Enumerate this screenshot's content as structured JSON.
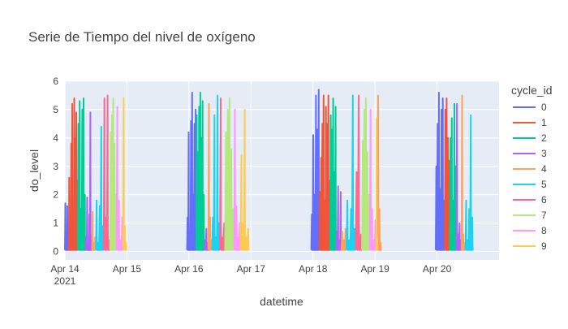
{
  "chart_data": {
    "type": "line",
    "title": "Serie de Tiempo del nivel de oxígeno",
    "xlabel": "datetime",
    "ylabel": "do_level",
    "x_range": [
      "2021-04-14",
      "2021-04-21"
    ],
    "ylim": [
      -0.3,
      6
    ],
    "yticks": [
      0,
      1,
      2,
      3,
      4,
      5,
      6
    ],
    "xticks": [
      {
        "date": "2021-04-14",
        "label": "Apr 14",
        "sublabel": "2021"
      },
      {
        "date": "2021-04-15",
        "label": "Apr 15",
        "sublabel": ""
      },
      {
        "date": "2021-04-16",
        "label": "Apr 16",
        "sublabel": ""
      },
      {
        "date": "2021-04-17",
        "label": "Apr 17",
        "sublabel": ""
      },
      {
        "date": "2021-04-18",
        "label": "Apr 18",
        "sublabel": ""
      },
      {
        "date": "2021-04-19",
        "label": "Apr 19",
        "sublabel": ""
      },
      {
        "date": "2021-04-20",
        "label": "Apr 20",
        "sublabel": ""
      }
    ],
    "grid": true,
    "legend": {
      "title": "cycle_id",
      "placement": "right"
    },
    "series": [
      {
        "name": "0",
        "color": "#636efa",
        "segments": [
          {
            "start": "2021-04-14T00:00",
            "end": "2021-04-14T01:30",
            "peaks": [
              1.7,
              0.6,
              1.6,
              0.4
            ]
          },
          {
            "start": "2021-04-15T23:15",
            "end": "2021-04-16T02:50",
            "peaks": [
              1.2,
              4.2,
              0.4,
              4.6,
              5.6,
              2.0,
              4.5,
              5.0
            ]
          },
          {
            "start": "2021-04-17T23:20",
            "end": "2021-04-18T02:30",
            "peaks": [
              1.3,
              4.1,
              2.0,
              5.5,
              4.3,
              5.7
            ]
          },
          {
            "start": "2021-04-19T23:30",
            "end": "2021-04-20T03:00",
            "peaks": [
              3.0,
              4.5,
              5.6,
              2.2,
              5.0,
              5.4,
              1.8
            ]
          }
        ]
      },
      {
        "name": "1",
        "color": "#ef553b",
        "segments": [
          {
            "start": "2021-04-14T01:30",
            "end": "2021-04-14T05:00",
            "peaks": [
              2.6,
              0.3,
              3.8,
              5.2,
              1.5,
              5.4,
              4.0,
              4.9,
              2.5
            ]
          },
          {
            "start": "2021-04-18T02:30",
            "end": "2021-04-18T06:40",
            "peaks": [
              2.1,
              3.3,
              4.5,
              5.5,
              1.8,
              5.1,
              4.5,
              5.5,
              2.5
            ]
          },
          {
            "start": "2021-04-20T03:00",
            "end": "2021-04-20T05:00",
            "peaks": [
              5.0,
              5.4,
              4.0,
              3.2
            ]
          }
        ]
      },
      {
        "name": "2",
        "color": "#00cc96",
        "segments": [
          {
            "start": "2021-04-14T05:00",
            "end": "2021-04-14T08:00",
            "peaks": [
              4.5,
              5.3,
              1.5,
              5.0,
              5.4,
              2.0
            ]
          },
          {
            "start": "2021-04-16T02:50",
            "end": "2021-04-16T06:00",
            "peaks": [
              4.8,
              3.5,
              5.1,
              5.6,
              4.0,
              5.3,
              2.0
            ]
          },
          {
            "start": "2021-04-18T06:40",
            "end": "2021-04-18T09:00",
            "peaks": [
              4.8,
              4.3,
              5.4,
              2.8,
              5.1
            ]
          },
          {
            "start": "2021-04-20T05:00",
            "end": "2021-04-20T07:30",
            "peaks": [
              4.0,
              4.7,
              1.8,
              5.2,
              3.0
            ]
          }
        ]
      },
      {
        "name": "3",
        "color": "#ab63fa",
        "segments": [
          {
            "start": "2021-04-14T08:00",
            "end": "2021-04-14T10:30",
            "peaks": [
              0.5,
              1.9,
              0.3,
              1.3,
              4.9,
              0.4
            ]
          },
          {
            "start": "2021-04-16T06:00",
            "end": "2021-04-16T07:30",
            "peaks": [
              0.4,
              0.8,
              0.3
            ]
          },
          {
            "start": "2021-04-18T09:00",
            "end": "2021-04-18T11:00",
            "peaks": [
              0.7,
              2.3,
              0.4,
              2.1
            ]
          },
          {
            "start": "2021-04-20T07:30",
            "end": "2021-04-20T09:30",
            "peaks": [
              5.2,
              0.6,
              1.0,
              0.4
            ]
          }
        ]
      },
      {
        "name": "4",
        "color": "#ffa15a",
        "segments": [
          {
            "start": "2021-04-14T10:30",
            "end": "2021-04-14T12:00",
            "peaks": [
              1.4,
              0.3,
              0.5
            ]
          },
          {
            "start": "2021-04-16T07:30",
            "end": "2021-04-16T09:00",
            "peaks": [
              5.2,
              1.2,
              0.4
            ]
          },
          {
            "start": "2021-04-18T11:00",
            "end": "2021-04-18T13:00",
            "peaks": [
              0.7,
              0.4,
              0.8
            ]
          },
          {
            "start": "2021-04-19T01:00",
            "end": "2021-04-19T02:30",
            "peaks": [
              5.5,
              1.5,
              0.3
            ]
          },
          {
            "start": "2021-04-20T09:30",
            "end": "2021-04-20T11:00",
            "peaks": [
              5.5,
              0.6,
              0.3
            ]
          }
        ]
      },
      {
        "name": "5",
        "color": "#19d3f3",
        "segments": [
          {
            "start": "2021-04-14T12:00",
            "end": "2021-04-14T15:00",
            "peaks": [
              1.8,
              0.3,
              1.6,
              4.4,
              0.9
            ]
          },
          {
            "start": "2021-04-16T09:00",
            "end": "2021-04-16T12:00",
            "peaks": [
              1.2,
              4.8,
              0.5,
              5.5,
              1.0
            ]
          },
          {
            "start": "2021-04-18T13:00",
            "end": "2021-04-18T16:30",
            "peaks": [
              1.8,
              0.4,
              1.5,
              5.5,
              0.8
            ]
          },
          {
            "start": "2021-04-20T11:00",
            "end": "2021-04-20T14:00",
            "peaks": [
              1.8,
              0.4,
              1.5,
              4.8,
              1.2
            ]
          }
        ]
      },
      {
        "name": "6",
        "color": "#ff6692",
        "segments": [
          {
            "start": "2021-04-14T15:00",
            "end": "2021-04-14T17:30",
            "peaks": [
              5.4,
              1.2,
              5.5,
              0.4
            ]
          },
          {
            "start": "2021-04-16T12:00",
            "end": "2021-04-16T14:00",
            "peaks": [
              5.4,
              0.5,
              1.0
            ]
          },
          {
            "start": "2021-04-18T16:30",
            "end": "2021-04-18T19:00",
            "peaks": [
              2.8,
              5.5,
              0.6
            ]
          }
        ]
      },
      {
        "name": "7",
        "color": "#b6e880",
        "segments": [
          {
            "start": "2021-04-14T17:30",
            "end": "2021-04-14T20:00",
            "peaks": [
              4.2,
              4.8,
              5.4,
              3.8,
              2.0
            ]
          },
          {
            "start": "2021-04-16T14:00",
            "end": "2021-04-16T17:30",
            "peaks": [
              4.2,
              5.0,
              5.4,
              3.6,
              1.5
            ]
          },
          {
            "start": "2021-04-18T19:00",
            "end": "2021-04-18T22:00",
            "peaks": [
              3.9,
              5.0,
              5.4,
              3.5,
              2.0
            ]
          }
        ]
      },
      {
        "name": "8",
        "color": "#ff97ff",
        "segments": [
          {
            "start": "2021-04-14T20:00",
            "end": "2021-04-14T22:30",
            "peaks": [
              5.1,
              1.8,
              0.4,
              1.2
            ]
          },
          {
            "start": "2021-04-16T17:30",
            "end": "2021-04-16T20:00",
            "peaks": [
              5.0,
              1.6,
              0.5,
              1.0
            ]
          },
          {
            "start": "2021-04-18T22:00",
            "end": "2021-04-19T00:30",
            "peaks": [
              5.0,
              1.5,
              0.4,
              1.1
            ]
          }
        ]
      },
      {
        "name": "9",
        "color": "#fecb52",
        "segments": [
          {
            "start": "2021-04-14T22:30",
            "end": "2021-04-14T23:59",
            "peaks": [
              5.4,
              0.9,
              0.3
            ]
          },
          {
            "start": "2021-04-16T20:00",
            "end": "2021-04-16T23:15",
            "peaks": [
              3.4,
              1.0,
              5.0,
              0.5,
              0.8
            ]
          },
          {
            "start": "2021-04-19T00:30",
            "end": "2021-04-19T01:00",
            "peaks": [
              4.7,
              0.5
            ]
          }
        ]
      }
    ]
  }
}
